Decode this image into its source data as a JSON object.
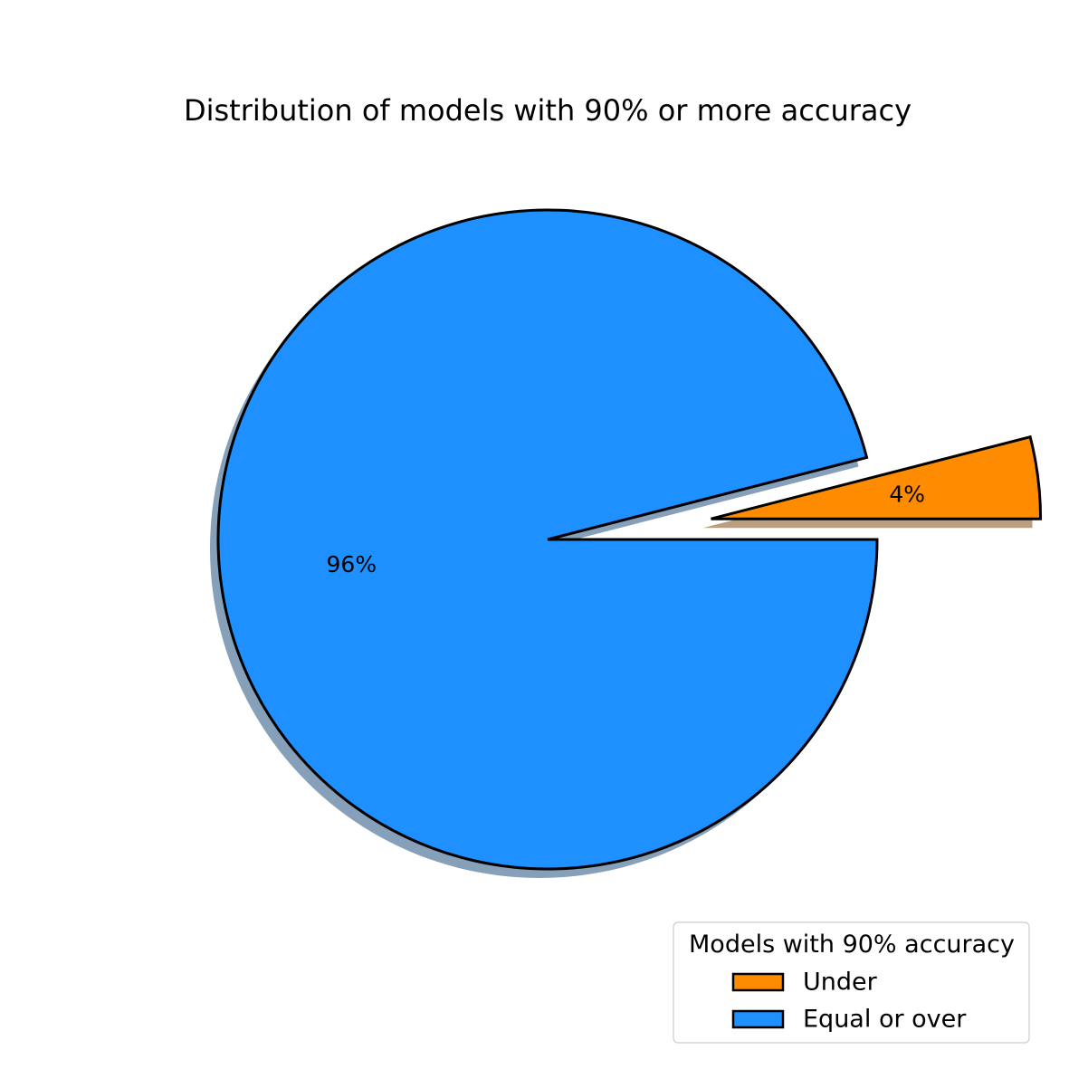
{
  "chart_data": {
    "type": "pie",
    "title": "Distribution of models with 90% or more accuracy",
    "slices": [
      {
        "label": "Under",
        "value": 4,
        "pct_label": "4%",
        "color": "#FF8C00",
        "exploded": true
      },
      {
        "label": "Equal or over",
        "value": 96,
        "pct_label": "96%",
        "color": "#1E90FF",
        "exploded": false
      }
    ],
    "shadow": true,
    "edge_color": "#000000",
    "legend": {
      "title": "Models with 90% accuracy",
      "placement": "lower-right"
    }
  }
}
